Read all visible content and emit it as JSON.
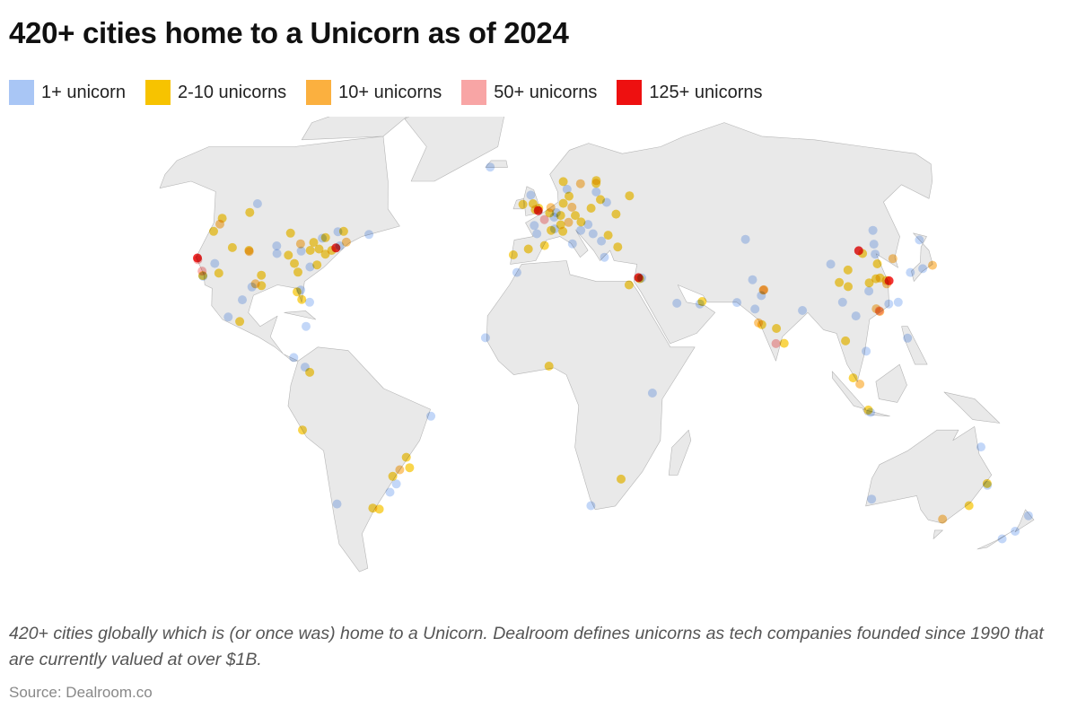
{
  "title": "420+ cities home to a Unicorn as of 2024",
  "legend": [
    {
      "label": "1+ unicorn",
      "color": "#a9c6f5"
    },
    {
      "label": "2-10 unicorns",
      "color": "#f7c300"
    },
    {
      "label": "10+ unicorns",
      "color": "#fbb03f"
    },
    {
      "label": "50+ unicorns",
      "color": "#f8a5a5"
    },
    {
      "label": "125+ unicorns",
      "color": "#ee1010"
    }
  ],
  "caption": "420+ cities globally which is (or once was) home to a Unicorn. Dealroom defines unicorns as tech companies founded since 1990 that are currently valued at over $1B.",
  "source": "Source: Dealroom.co",
  "map_colors": {
    "land": "#e9e9e9",
    "border": "#b5b5b5"
  },
  "cities": [
    [
      -122.4,
      37.8,
      5
    ],
    [
      -121.9,
      37.3,
      4
    ],
    [
      -118.2,
      34,
      4
    ],
    [
      -117.2,
      32.7,
      2
    ],
    [
      -122.3,
      47.6,
      3
    ],
    [
      -122.7,
      45.5,
      2
    ],
    [
      -123.1,
      49.3,
      2
    ],
    [
      -111.9,
      40.8,
      2
    ],
    [
      -105,
      39.7,
      3
    ],
    [
      -105.3,
      40,
      2
    ],
    [
      -112,
      33.4,
      2
    ],
    [
      -115.1,
      36.2,
      1
    ],
    [
      -97.7,
      30.3,
      3
    ],
    [
      -96.8,
      32.8,
      2
    ],
    [
      -95.4,
      29.8,
      2
    ],
    [
      -98.5,
      29.4,
      1
    ],
    [
      -87.6,
      41.9,
      3
    ],
    [
      -93.3,
      45,
      2
    ],
    [
      -83,
      42.3,
      2
    ],
    [
      -83,
      40,
      2
    ],
    [
      -80,
      40.4,
      2
    ],
    [
      -84.4,
      33.7,
      2
    ],
    [
      -80.2,
      25.8,
      2
    ],
    [
      -86.8,
      36.2,
      2
    ],
    [
      -78.6,
      35.8,
      2
    ],
    [
      -77,
      38.9,
      2
    ],
    [
      -75.2,
      40,
      2
    ],
    [
      -74,
      40.7,
      5
    ],
    [
      -71,
      42.4,
      3
    ],
    [
      -79.4,
      43.7,
      2
    ],
    [
      -73.6,
      45.5,
      2
    ],
    [
      -75.7,
      45.4,
      1
    ],
    [
      -80.5,
      43.5,
      1
    ],
    [
      -114,
      51,
      2
    ],
    [
      -113.5,
      53.5,
      1
    ],
    [
      -90.2,
      38.6,
      2
    ],
    [
      -94.6,
      39.1,
      1
    ],
    [
      -86.2,
      39.8,
      1
    ],
    [
      -96,
      41.3,
      1
    ],
    [
      -80.8,
      35.2,
      1
    ],
    [
      -82.5,
      28,
      2
    ],
    [
      -81.4,
      28.5,
      1
    ],
    [
      -72.9,
      41.3,
      1
    ],
    [
      -63.6,
      44.6,
      1
    ],
    [
      -99.1,
      19.4,
      2
    ],
    [
      -103.3,
      20.7,
      1
    ],
    [
      -100.3,
      25.7,
      1
    ],
    [
      -117,
      32.5,
      1
    ],
    [
      -77.3,
      25,
      1
    ],
    [
      -76.8,
      18,
      1
    ],
    [
      -74,
      4.7,
      2
    ],
    [
      -75.6,
      6.2,
      1
    ],
    [
      -79.5,
      9,
      1
    ],
    [
      -77,
      -12,
      2
    ],
    [
      -70.6,
      -33.4,
      1
    ],
    [
      -58.4,
      -34.6,
      2
    ],
    [
      -56.2,
      -34.9,
      2
    ],
    [
      -46.6,
      -23.5,
      3
    ],
    [
      -43.2,
      -22.9,
      2
    ],
    [
      -43.9,
      -19.9,
      2
    ],
    [
      -49.3,
      -25.4,
      2
    ],
    [
      -48.5,
      -27.6,
      1
    ],
    [
      -51.2,
      -30,
      1
    ],
    [
      -34.9,
      -8,
      1
    ],
    [
      -0.1,
      51.5,
      5
    ],
    [
      2.3,
      48.9,
      4
    ],
    [
      13.4,
      52.5,
      3
    ],
    [
      11.6,
      48.1,
      3
    ],
    [
      4.9,
      52.4,
      3
    ],
    [
      18,
      59.3,
      3
    ],
    [
      25,
      60.2,
      2
    ],
    [
      10.7,
      59.9,
      2
    ],
    [
      12.6,
      55.7,
      2
    ],
    [
      -6.3,
      53.3,
      2
    ],
    [
      -3.2,
      56,
      1
    ],
    [
      -2.2,
      53.5,
      2
    ],
    [
      0.1,
      52.2,
      2
    ],
    [
      -1.3,
      51.8,
      2
    ],
    [
      8.5,
      47.4,
      2
    ],
    [
      6.1,
      46.2,
      1
    ],
    [
      -3.7,
      40.4,
      2
    ],
    [
      2.2,
      41.4,
      2
    ],
    [
      -9.1,
      38.7,
      2
    ],
    [
      9.2,
      45.5,
      2
    ],
    [
      12.5,
      41.9,
      1
    ],
    [
      16.4,
      48.2,
      2
    ],
    [
      14.4,
      50.1,
      2
    ],
    [
      21,
      52.2,
      2
    ],
    [
      24.7,
      59.4,
      2
    ],
    [
      24.1,
      56.9,
      1
    ],
    [
      25.3,
      54.7,
      2
    ],
    [
      30.5,
      50.5,
      2
    ],
    [
      37.6,
      55.8,
      2
    ],
    [
      29,
      41,
      2
    ],
    [
      23.7,
      38,
      1
    ],
    [
      26.1,
      44.4,
      2
    ],
    [
      19,
      47.5,
      1
    ],
    [
      4.4,
      50.8,
      2
    ],
    [
      10,
      53.6,
      2
    ],
    [
      8.7,
      50.1,
      2
    ],
    [
      7,
      50.9,
      1
    ],
    [
      4.8,
      45.8,
      2
    ],
    [
      -0.6,
      44.8,
      1
    ],
    [
      -1.6,
      47.2,
      1
    ],
    [
      6.1,
      49.6,
      1
    ],
    [
      16,
      45.8,
      1
    ],
    [
      20.5,
      44.8,
      1
    ],
    [
      23.3,
      42.7,
      1
    ],
    [
      27.6,
      53.9,
      1
    ],
    [
      12,
      57.7,
      1
    ],
    [
      -21.9,
      64.1,
      1
    ],
    [
      34.8,
      32.1,
      5
    ],
    [
      35.2,
      31.8,
      2
    ],
    [
      31.2,
      30,
      2
    ],
    [
      35.9,
      32,
      1
    ],
    [
      46.7,
      24.7,
      1
    ],
    [
      55.3,
      25.2,
      2
    ],
    [
      54.4,
      24.5,
      1
    ],
    [
      -7.6,
      33.6,
      1
    ],
    [
      3.4,
      6.5,
      2
    ],
    [
      36.8,
      -1.3,
      1
    ],
    [
      18.4,
      -33.9,
      1
    ],
    [
      28,
      -26.2,
      2
    ],
    [
      -17.4,
      14.7,
      1
    ],
    [
      77.6,
      13,
      4
    ],
    [
      72.9,
      19,
      3
    ],
    [
      77.2,
      28.6,
      3
    ],
    [
      77,
      28.5,
      3
    ],
    [
      73.9,
      18.5,
      2
    ],
    [
      78.5,
      17.4,
      2
    ],
    [
      80.3,
      13.1,
      2
    ],
    [
      88.4,
      22.6,
      1
    ],
    [
      72.6,
      23,
      1
    ],
    [
      75.8,
      26.9,
      1
    ],
    [
      67,
      24.9,
      1
    ],
    [
      74.3,
      31.5,
      1
    ],
    [
      76.9,
      43.2,
      1
    ],
    [
      116.4,
      39.9,
      5
    ],
    [
      121.5,
      31.2,
      5
    ],
    [
      114.1,
      22.5,
      4
    ],
    [
      120.2,
      30.3,
      3
    ],
    [
      113.3,
      23.1,
      3
    ],
    [
      104,
      30.7,
      2
    ],
    [
      114.3,
      30.6,
      2
    ],
    [
      118.8,
      32,
      2
    ],
    [
      120.6,
      31.3,
      2
    ],
    [
      108.9,
      34.3,
      2
    ],
    [
      117.2,
      39.1,
      2
    ],
    [
      120.4,
      36.1,
      2
    ],
    [
      106.5,
      29.5,
      2
    ],
    [
      118.1,
      24.5,
      1
    ],
    [
      117.3,
      31.8,
      2
    ],
    [
      113,
      28.2,
      1
    ],
    [
      102.7,
      25,
      1
    ],
    [
      121.6,
      38.9,
      1
    ],
    [
      123.4,
      41.8,
      1
    ],
    [
      126.6,
      45.8,
      1
    ],
    [
      127,
      37.6,
      3
    ],
    [
      139.7,
      35.7,
      3
    ],
    [
      135.5,
      34.7,
      1
    ],
    [
      130.4,
      33.6,
      1
    ],
    [
      141.3,
      43,
      1
    ],
    [
      121.5,
      25,
      1
    ],
    [
      114.2,
      22.3,
      3
    ],
    [
      121,
      14.6,
      1
    ],
    [
      105.8,
      21,
      1
    ],
    [
      106.7,
      10.8,
      1
    ],
    [
      100.5,
      13.8,
      2
    ],
    [
      101.7,
      3.1,
      2
    ],
    [
      103.8,
      1.3,
      3
    ],
    [
      106.8,
      -6.2,
      2
    ],
    [
      107.6,
      -6.9,
      1
    ],
    [
      103.8,
      36,
      1
    ],
    [
      151.2,
      -33.9,
      2
    ],
    [
      145,
      -37.8,
      3
    ],
    [
      153,
      -27.5,
      2
    ],
    [
      115.9,
      -32,
      1
    ],
    [
      145.8,
      -16.9,
      1
    ],
    [
      174.8,
      -36.8,
      1
    ],
    [
      174.8,
      -41.3,
      1
    ],
    [
      172.6,
      -43.5,
      1
    ],
    [
      153.4,
      -28,
      1
    ]
  ]
}
